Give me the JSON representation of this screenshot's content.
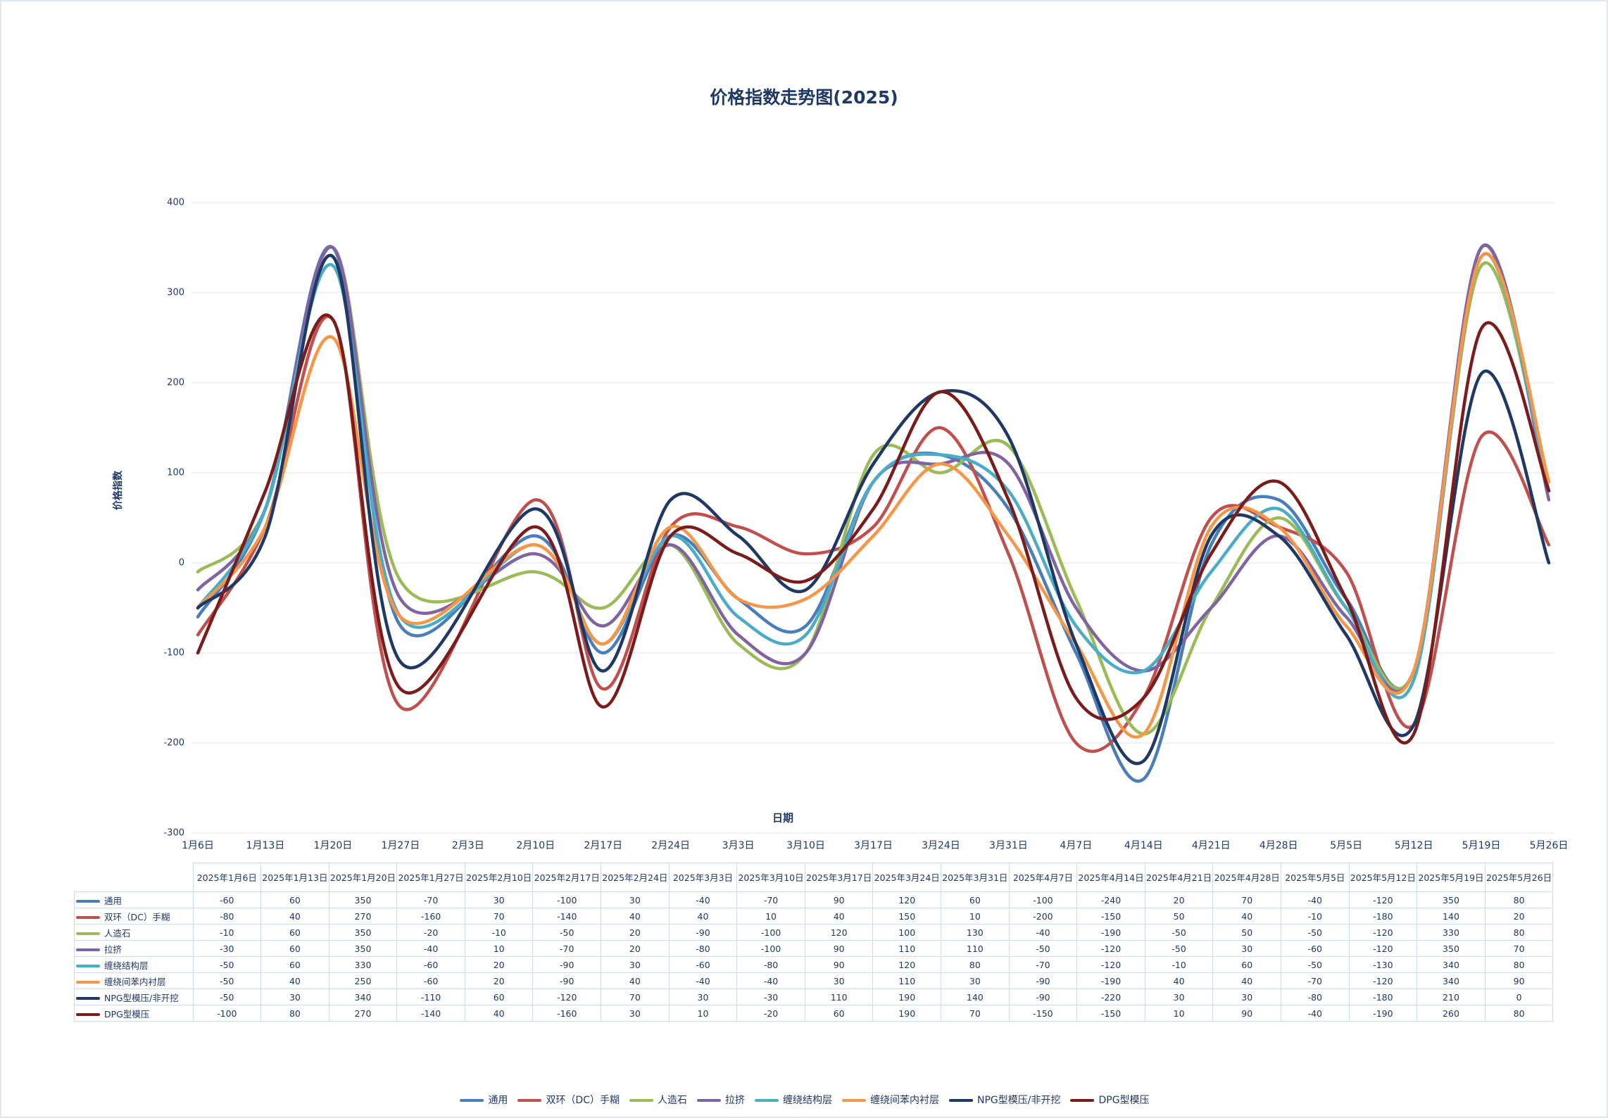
{
  "chart_data": {
    "type": "line",
    "title": "价格指数走势图(2025)",
    "ylabel": "价格指数",
    "xlabel": "日期",
    "x": [
      "2025年1月6日",
      "2025年1月13日",
      "2025年1月20日",
      "2025年1月27日",
      "2025年2月10日",
      "2025年2月17日",
      "2025年2月24日",
      "2025年3月3日",
      "2025年3月10日",
      "2025年3月17日",
      "2025年3月24日",
      "2025年3月31日",
      "2025年4月7日",
      "2025年4月14日",
      "2025年4月21日",
      "2025年4月28日",
      "2025年5月5日",
      "2025年5月12日",
      "2025年5月19日",
      "2025年5月26日"
    ],
    "xticks": [
      "1月6日",
      "1月13日",
      "1月20日",
      "1月27日",
      "2月3日",
      "2月10日",
      "2月17日",
      "2月24日",
      "3月3日",
      "3月10日",
      "3月17日",
      "3月24日",
      "3月31日",
      "4月7日",
      "4月14日",
      "4月21日",
      "4月28日",
      "5月5日",
      "5月12日",
      "5月19日",
      "5月26日"
    ],
    "ylim": [
      -300,
      400
    ],
    "yticks": [
      -300,
      -200,
      -100,
      0,
      100,
      200,
      300,
      400
    ],
    "grid": true,
    "legend": "bottom",
    "series": [
      {
        "name": "通用",
        "color": "#4a7ebb",
        "values": [
          -60,
          60,
          350,
          -70,
          30,
          -100,
          30,
          -40,
          -70,
          90,
          120,
          60,
          -100,
          -240,
          20,
          70,
          -40,
          -120,
          350,
          80
        ]
      },
      {
        "name": "双环（DC）手糊",
        "color": "#c0504d",
        "values": [
          -80,
          40,
          270,
          -160,
          70,
          -140,
          40,
          40,
          10,
          40,
          150,
          10,
          -200,
          -150,
          50,
          40,
          -10,
          -180,
          140,
          20
        ]
      },
      {
        "name": "人造石",
        "color": "#9bbb59",
        "values": [
          -10,
          60,
          350,
          -20,
          -10,
          -50,
          20,
          -90,
          -100,
          120,
          100,
          130,
          -40,
          -190,
          -50,
          50,
          -50,
          -120,
          330,
          80
        ]
      },
      {
        "name": "拉挤",
        "color": "#8064a2",
        "values": [
          -30,
          60,
          350,
          -40,
          10,
          -70,
          20,
          -80,
          -100,
          90,
          110,
          110,
          -50,
          -120,
          -50,
          30,
          -60,
          -120,
          350,
          70
        ]
      },
      {
        "name": "缠绕结构层",
        "color": "#4bacc6",
        "values": [
          -50,
          60,
          330,
          -60,
          20,
          -90,
          30,
          -60,
          -80,
          90,
          120,
          80,
          -70,
          -120,
          -10,
          60,
          -50,
          -130,
          340,
          80
        ]
      },
      {
        "name": "缠绕间苯内衬层",
        "color": "#f79646",
        "values": [
          -50,
          40,
          250,
          -60,
          20,
          -90,
          40,
          -40,
          -40,
          30,
          110,
          30,
          -90,
          -190,
          40,
          40,
          -70,
          -120,
          340,
          90
        ]
      },
      {
        "name": "NPG型模压/非开挖",
        "color": "#1f3864",
        "values": [
          -50,
          30,
          340,
          -110,
          60,
          -120,
          70,
          30,
          -30,
          110,
          190,
          140,
          -90,
          -220,
          30,
          30,
          -80,
          -180,
          210,
          0
        ]
      },
      {
        "name": "DPG型模压",
        "color": "#7b1c1c",
        "values": [
          -100,
          80,
          270,
          -140,
          40,
          -160,
          30,
          10,
          -20,
          60,
          190,
          70,
          -150,
          -150,
          10,
          90,
          -40,
          -190,
          260,
          80
        ]
      }
    ]
  }
}
